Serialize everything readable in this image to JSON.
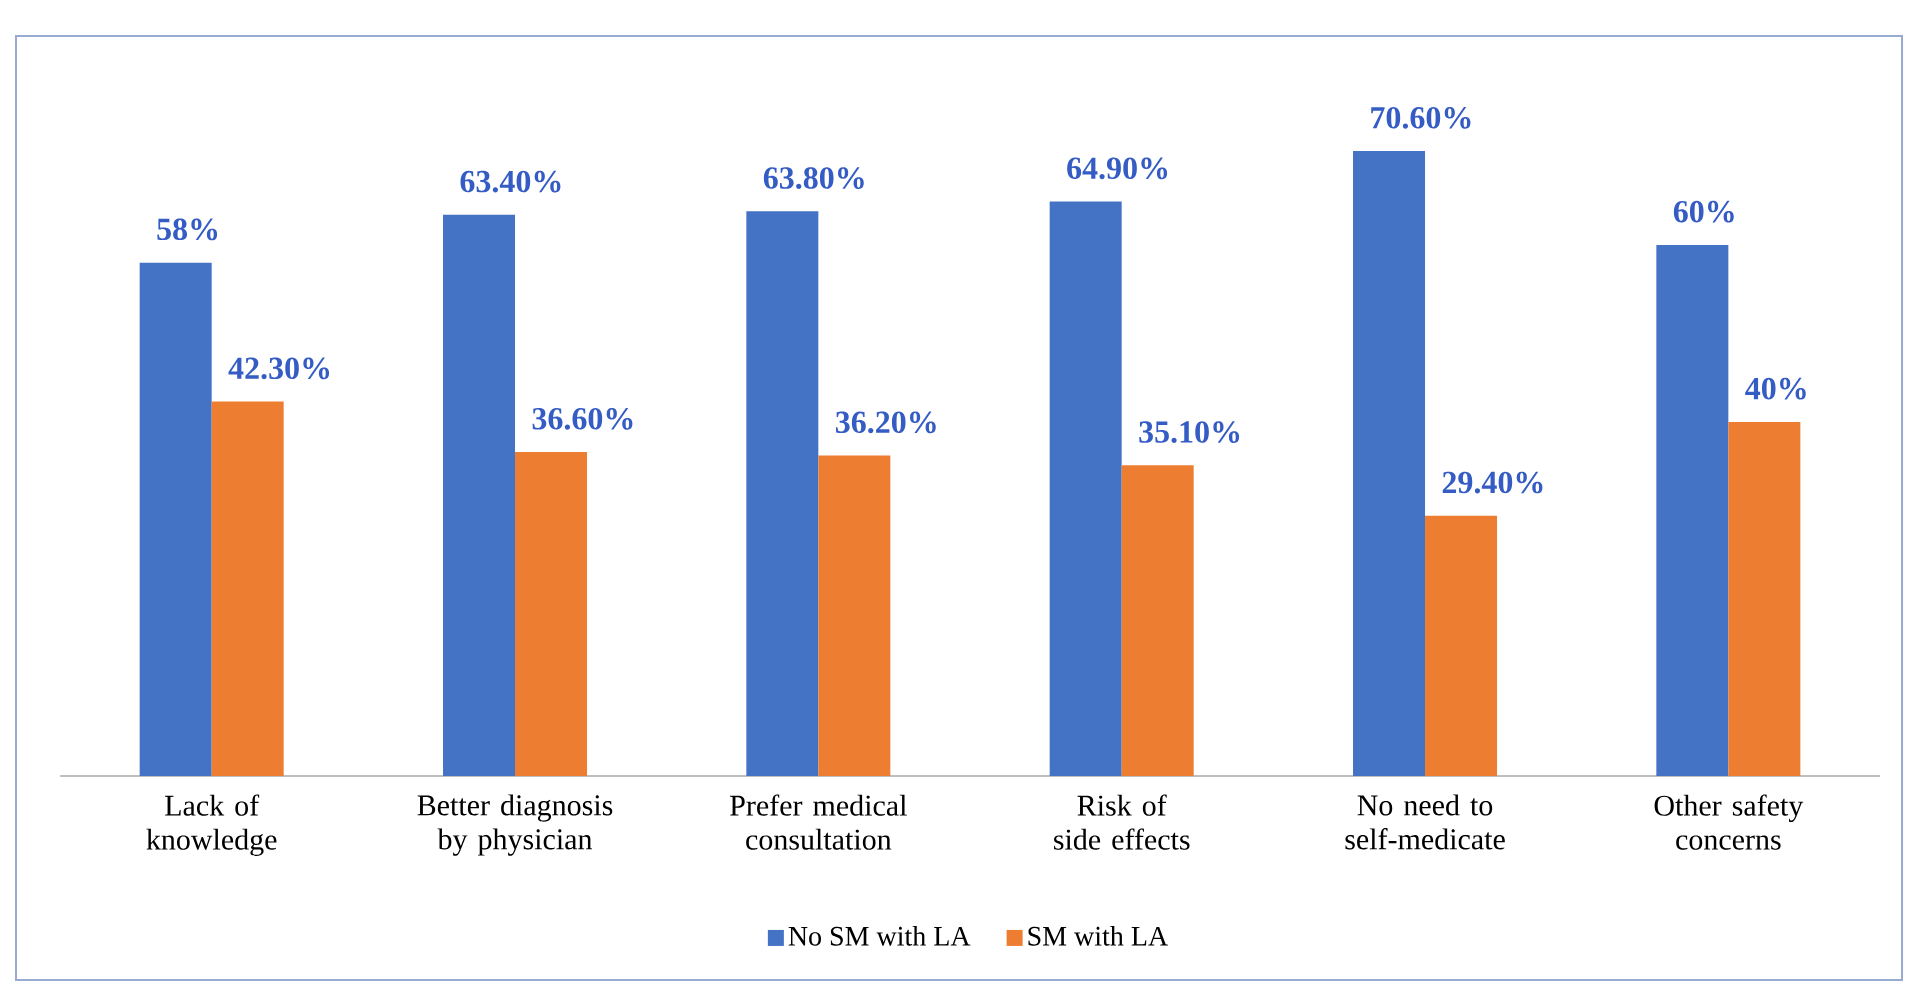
{
  "chart_data": {
    "type": "bar",
    "categories": [
      "Lack of knowledge",
      "Better diagnosis by physician",
      "Prefer medical consultation",
      "Risk of side effects",
      "No need to self-medicate",
      "Other safety concerns"
    ],
    "series": [
      {
        "name": "No SM with LA",
        "color": "#4472c4",
        "values": [
          58,
          63.4,
          63.8,
          64.9,
          70.6,
          60
        ],
        "value_labels": [
          "58%",
          "63.40%",
          "63.80%",
          "64.90%",
          "70.60%",
          "60%"
        ]
      },
      {
        "name": "SM with LA",
        "color": "#ed7d31",
        "values": [
          42.3,
          36.6,
          36.2,
          35.1,
          29.4,
          40
        ],
        "value_labels": [
          "42.30%",
          "36.60%",
          "36.20%",
          "35.10%",
          "29.40%",
          "40%"
        ]
      }
    ],
    "legend": "bottom"
  }
}
